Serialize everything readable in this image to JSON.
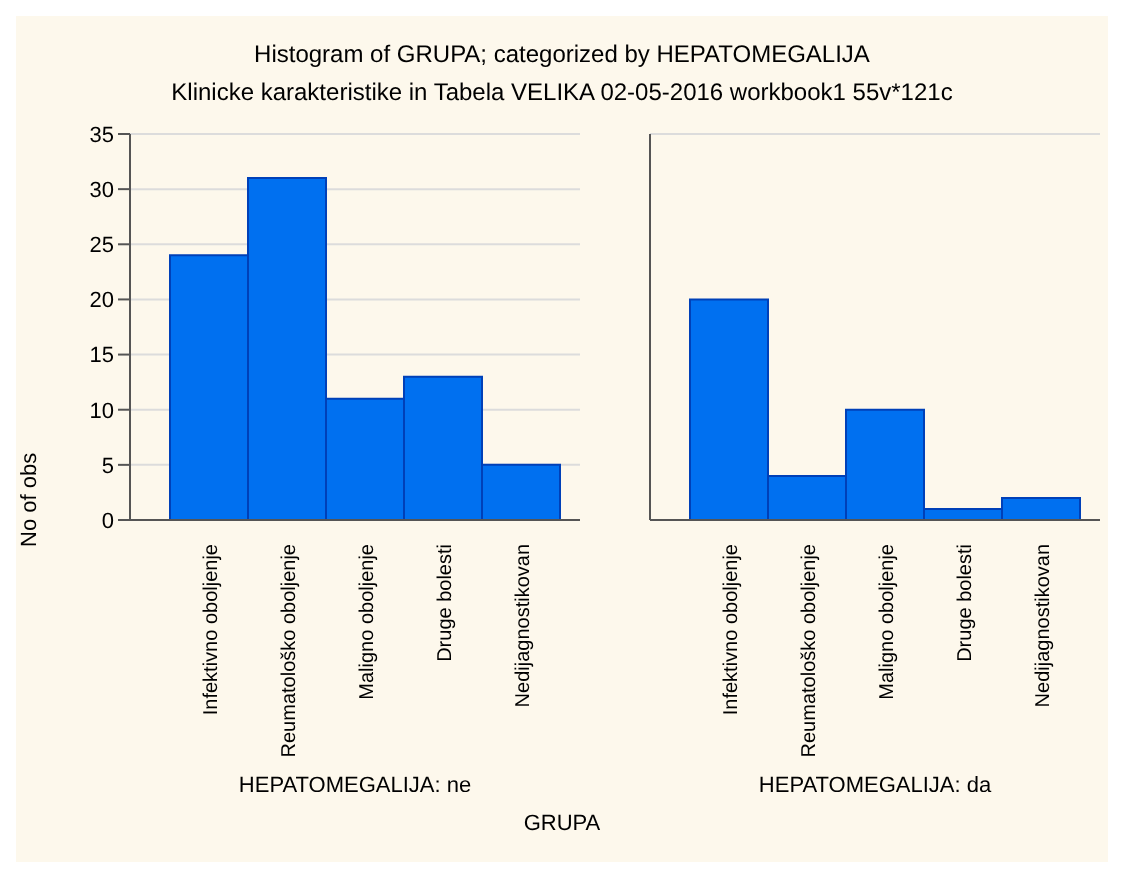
{
  "chart_data": [
    {
      "type": "bar",
      "title": "Histogram of GRUPA; categorized by HEPATOMEGALIJA",
      "subtitle": "Klinicke karakteristike in Tabela VELIKA 02-05-2016 workbook1 55v*121c",
      "categories": [
        "Infektivno oboljenje",
        "Reumatološko oboljenje",
        "Maligno oboljenje",
        "Druge bolesti",
        "Nedijagnostikovan"
      ],
      "values": [
        24,
        31,
        11,
        13,
        5
      ],
      "color": "#0070f0",
      "xlabel": "HEPATOMEGALIJA: ne",
      "ylabel": "No of obs",
      "ylim": [
        0,
        35
      ],
      "yticks": [
        0,
        5,
        10,
        15,
        20,
        25,
        30,
        35
      ],
      "grid": "y",
      "annotations": [
        "GRUPA"
      ]
    },
    {
      "type": "bar",
      "categories": [
        "Infektivno oboljenje",
        "Reumatološko oboljenje",
        "Maligno oboljenje",
        "Druge bolesti",
        "Nedijagnostikovan"
      ],
      "values": [
        20,
        4,
        10,
        1,
        2
      ],
      "color": "#0070f0",
      "xlabel": "HEPATOMEGALIJA: da",
      "ylim": [
        0,
        35
      ],
      "yticks": [
        0,
        5,
        10,
        15,
        20,
        25,
        30,
        35
      ],
      "grid": "y",
      "tick_labels": "x"
    }
  ]
}
